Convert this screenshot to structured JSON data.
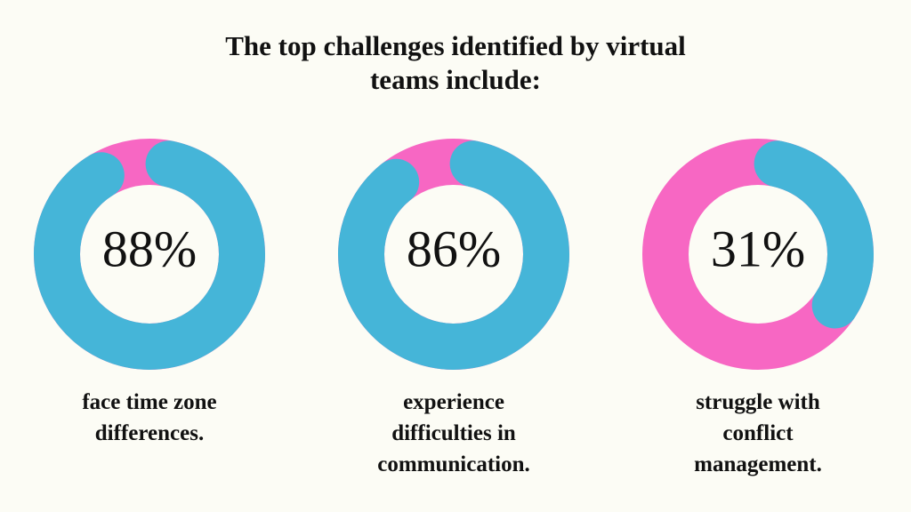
{
  "title": [
    "The top challenges identified by virtual",
    "teams include:"
  ],
  "chart_data": [
    {
      "type": "donut",
      "values": [
        88
      ],
      "value_labels": [
        "88%"
      ],
      "color": "#45b5d8",
      "track_color": "#f767c3",
      "caption": [
        "face time zone",
        "differences."
      ]
    },
    {
      "type": "donut",
      "values": [
        86
      ],
      "value_labels": [
        "86%"
      ],
      "color": "#45b5d8",
      "track_color": "#f767c3",
      "caption": [
        "experience",
        "difficulties in",
        "communication."
      ]
    },
    {
      "type": "donut",
      "values": [
        31
      ],
      "value_labels": [
        "31%"
      ],
      "color": "#45b5d8",
      "track_color": "#f767c3",
      "caption": [
        "struggle with",
        "conflict",
        "management."
      ]
    }
  ]
}
